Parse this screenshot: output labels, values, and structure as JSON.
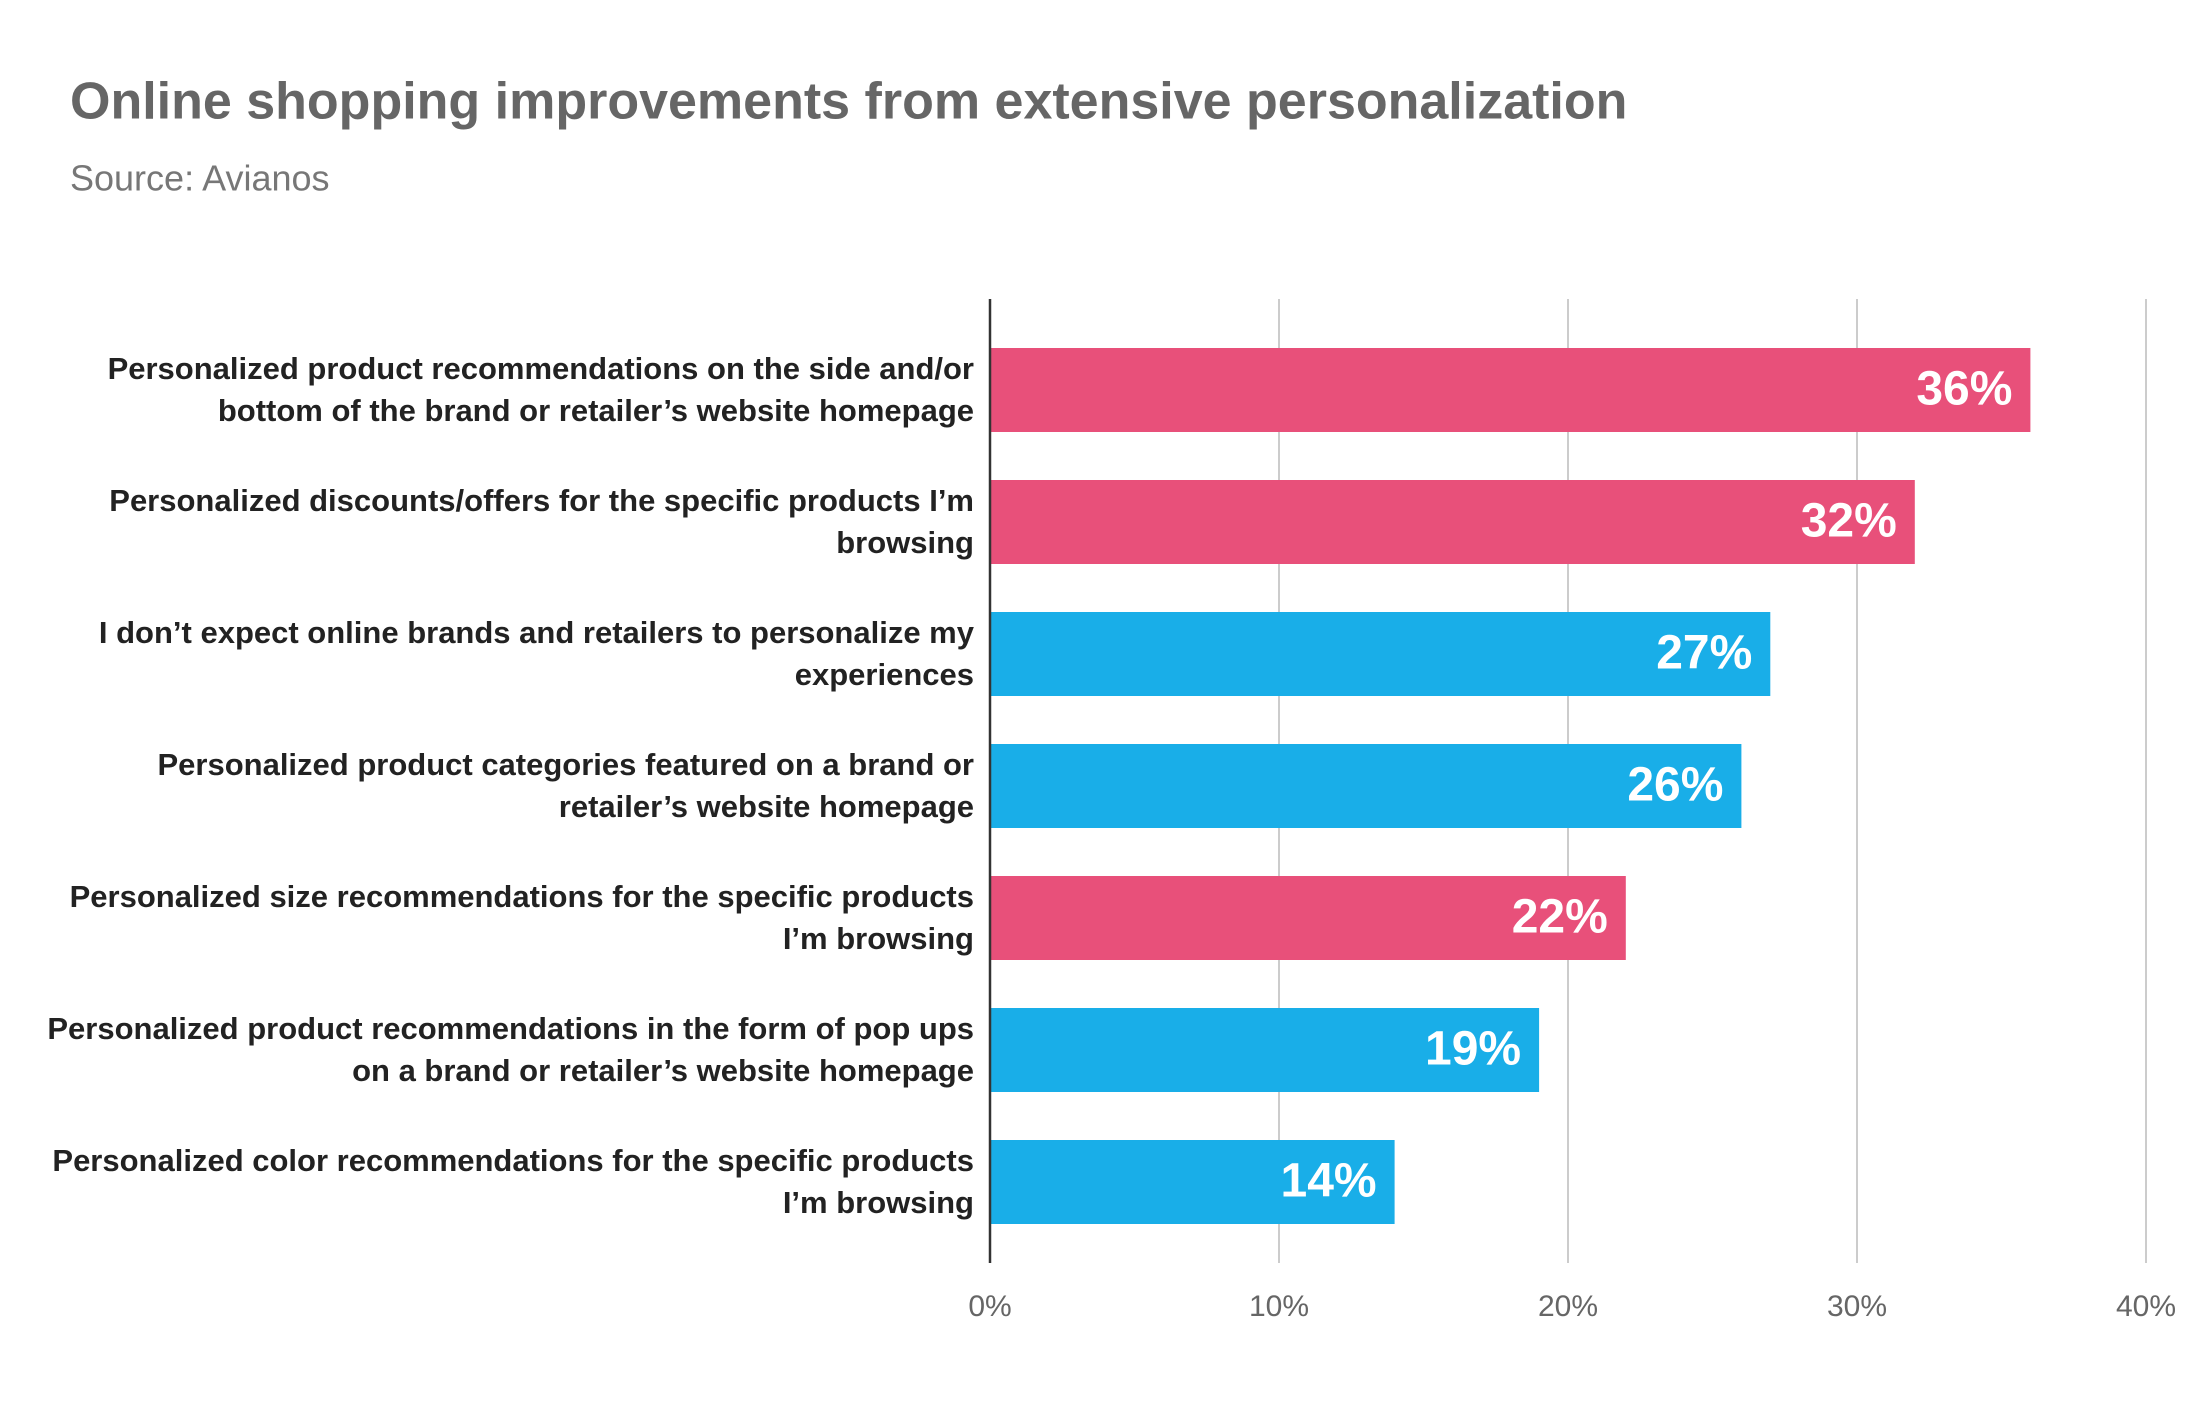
{
  "chart_data": {
    "type": "bar",
    "orientation": "horizontal",
    "title": "Online shopping improvements from extensive personalization",
    "subtitle": "Source: Avianos",
    "categories": [
      "Personalized product recommendations on the side and/or bottom of the brand or retailer’s website homepage",
      "Personalized discounts/offers for the specific products I’m browsing",
      "I don’t expect online brands and retailers to personalize my experiences",
      "Personalized product categories featured on a brand or retailer’s website homepage",
      "Personalized size recommendations for the specific products I’m browsing",
      "Personalized product recommendations in the form of pop ups on a brand or retailer’s website homepage",
      "Personalized color recommendations for the specific products I’m browsing"
    ],
    "values": [
      36,
      32,
      27,
      26,
      22,
      19,
      14
    ],
    "value_labels": [
      "36%",
      "32%",
      "27%",
      "26%",
      "22%",
      "19%",
      "14%"
    ],
    "colors": [
      "#e8507a",
      "#e8507a",
      "#19aee8",
      "#19aee8",
      "#e8507a",
      "#19aee8",
      "#19aee8"
    ],
    "xlim": [
      0,
      40
    ],
    "xticks": [
      {
        "value": 0,
        "label": "0%"
      },
      {
        "value": 10,
        "label": "10%"
      },
      {
        "value": 20,
        "label": "20%"
      },
      {
        "value": 30,
        "label": "30%"
      },
      {
        "value": 40,
        "label": "40%"
      }
    ],
    "grid": true
  }
}
